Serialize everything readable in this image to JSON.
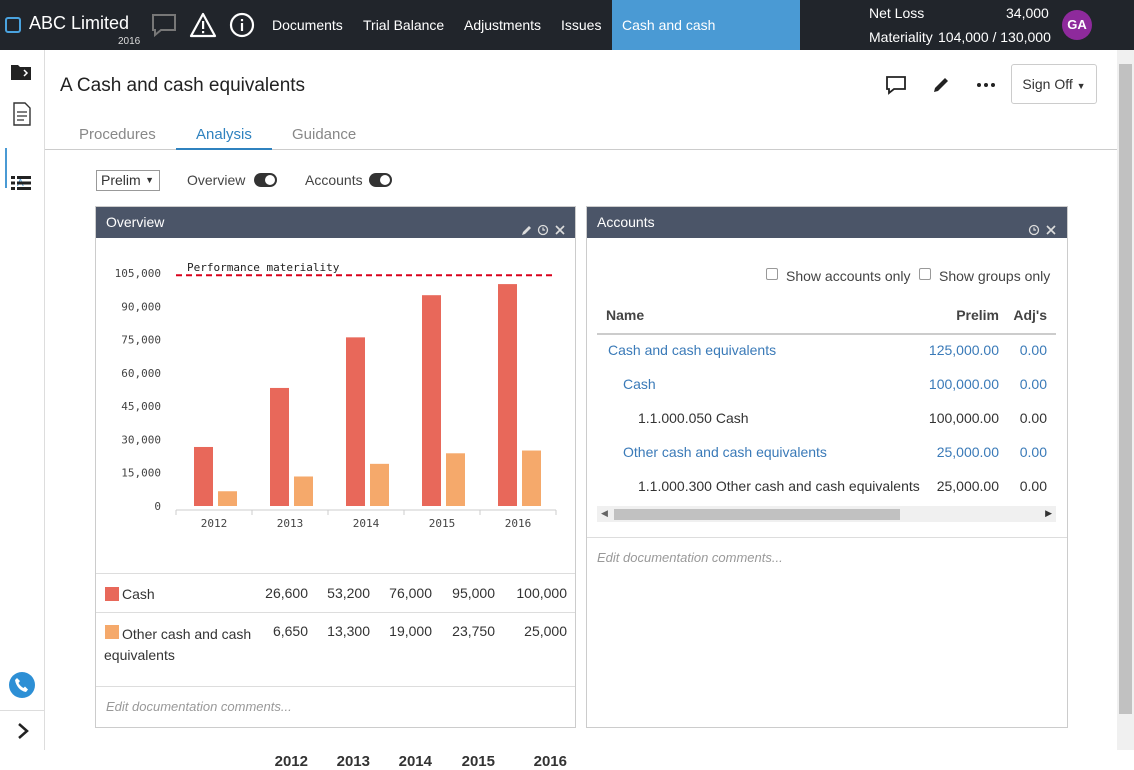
{
  "header": {
    "brand": "ABC Limited",
    "year": "2016",
    "nav": [
      "Documents",
      "Trial Balance",
      "Adjustments",
      "Issues",
      "Cash and cash equivalents"
    ],
    "net_loss_label": "Net Loss",
    "net_loss_value": "34,000",
    "materiality_label": "Materiality",
    "materiality_value": "104,000 / 130,000",
    "avatar": "GA",
    "accent_color": "#4a9ad4"
  },
  "sidebar": {
    "selected_label": "A"
  },
  "page": {
    "title": "A Cash and cash equivalents",
    "sign_off": "Sign Off",
    "tabs": [
      "Procedures",
      "Analysis",
      "Guidance"
    ]
  },
  "controls": {
    "select_value": "Prelim",
    "toggle_overview": "Overview",
    "toggle_accounts": "Accounts"
  },
  "overview": {
    "title": "Overview",
    "doc_placeholder": "Edit documentation comments...",
    "years": [
      "2012",
      "2013",
      "2014",
      "2015",
      "2016"
    ],
    "rows": [
      {
        "label": "Cash",
        "values": [
          "26,600",
          "53,200",
          "76,000",
          "95,000",
          "100,000"
        ]
      },
      {
        "label": "Other cash and cash equivalents",
        "values": [
          "6,650",
          "13,300",
          "19,000",
          "23,750",
          "25,000"
        ]
      }
    ]
  },
  "chart_data": {
    "type": "bar",
    "categories": [
      "2012",
      "2013",
      "2014",
      "2015",
      "2016"
    ],
    "series": [
      {
        "name": "Cash",
        "values": [
          26600,
          53200,
          76000,
          95000,
          100000
        ],
        "color": "#e8685a"
      },
      {
        "name": "Other cash and cash equivalents",
        "values": [
          6650,
          13300,
          19000,
          23750,
          25000
        ],
        "color": "#f5a96b"
      }
    ],
    "ylim": [
      0,
      105000
    ],
    "yticks": [
      0,
      15000,
      30000,
      45000,
      60000,
      75000,
      90000,
      105000
    ],
    "ytick_labels": [
      "0",
      "15,000",
      "30,000",
      "45,000",
      "60,000",
      "75,000",
      "90,000",
      "105,000"
    ],
    "reference_line": {
      "label": "Performance materiality",
      "value": 104000,
      "color": "#d9001b"
    }
  },
  "accounts": {
    "title": "Accounts",
    "show_accounts_only": "Show accounts only",
    "show_groups_only": "Show groups only",
    "columns": [
      "Name",
      "Prelim",
      "Adj's"
    ],
    "rows": [
      {
        "name": "Cash and cash equivalents",
        "prelim": "125,000.00",
        "adj": "0.00"
      },
      {
        "name": "Cash",
        "prelim": "100,000.00",
        "adj": "0.00"
      },
      {
        "name": "1.1.000.050 Cash",
        "prelim": "100,000.00",
        "adj": "0.00"
      },
      {
        "name": "Other cash and cash equivalents",
        "prelim": "25,000.00",
        "adj": "0.00"
      },
      {
        "name": "1.1.000.300 Other cash and cash equivalents",
        "prelim": "25,000.00",
        "adj": "0.00"
      }
    ],
    "doc_placeholder": "Edit documentation comments..."
  }
}
